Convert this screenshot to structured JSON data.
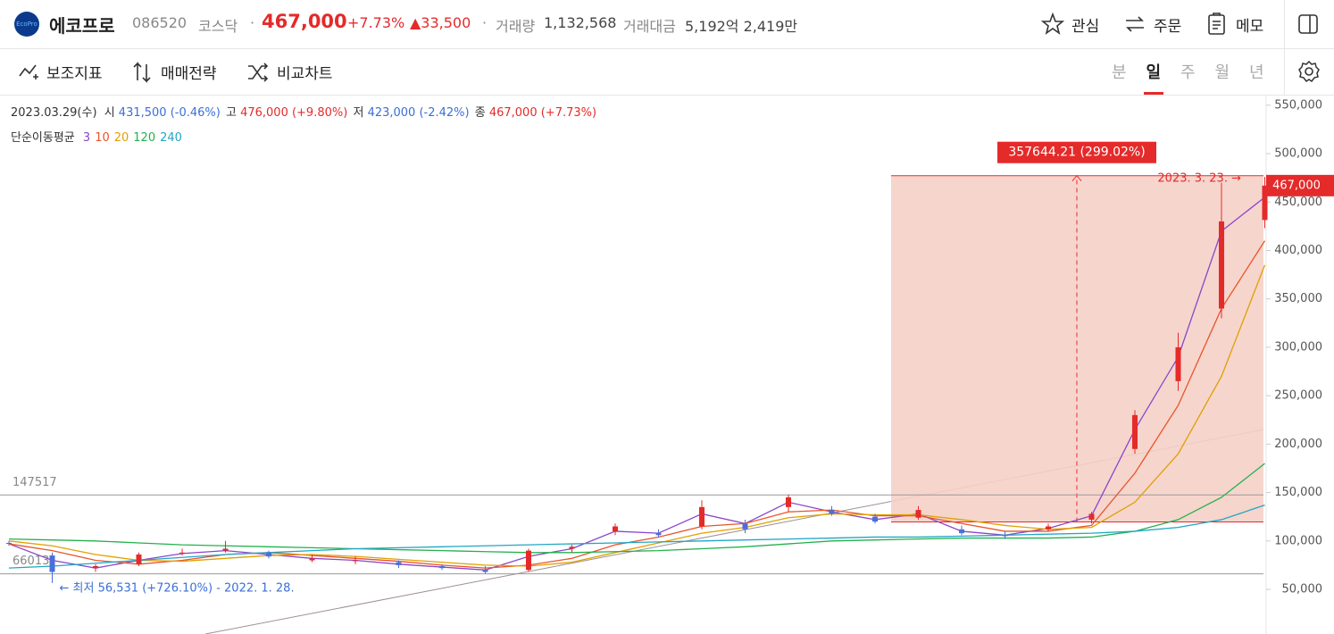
{
  "header": {
    "logo": "EcoPro",
    "name": "에코프로",
    "code": "086520",
    "market": "코스닥",
    "dot": "·",
    "price": "467,000",
    "change_pct": "+7.73%",
    "change": "▲33,500",
    "volume_label": "거래량",
    "volume": "1,132,568",
    "amount_label": "거래대금",
    "amount": "5,192억 2,419만",
    "actions": [
      "관심",
      "주문",
      "메모"
    ]
  },
  "toolbar": {
    "tools": [
      "보조지표",
      "매매전략",
      "비교차트"
    ],
    "periods": [
      "분",
      "일",
      "주",
      "월",
      "년"
    ],
    "selected_period": "일"
  },
  "chart_data": {
    "type": "candlestick",
    "ohlc_line": {
      "date": "2023.03.29(수)",
      "open_label": "시",
      "open": "431,500 (-0.46%)",
      "high_label": "고",
      "high": "476,000 (+9.80%)",
      "low_label": "저",
      "low": "423,000 (-2.42%)",
      "close_label": "종",
      "close": "467,000 (+7.73%)"
    },
    "indicator_label": "단순이동평균",
    "up_color": "#e52a2a",
    "down_color": "#4a6fd8",
    "open": [
      98000,
      85000,
      72000,
      76000,
      88000,
      90000,
      88000,
      80000,
      80000,
      78000,
      74000,
      70000,
      70000,
      92000,
      110000,
      108000,
      115000,
      118000,
      135000,
      132000,
      125000,
      124000,
      112000,
      106000,
      112000,
      122000,
      195000,
      265000,
      340000,
      431500
    ],
    "high": [
      100000,
      88000,
      76000,
      88000,
      92000,
      100000,
      90000,
      86000,
      84000,
      80000,
      76000,
      74000,
      92000,
      96000,
      118000,
      112000,
      142000,
      122000,
      148000,
      136000,
      128000,
      136000,
      116000,
      110000,
      118000,
      130000,
      235000,
      315000,
      470000,
      476000
    ],
    "low": [
      95000,
      56531,
      68000,
      74000,
      85000,
      88000,
      82000,
      78000,
      76000,
      72000,
      70000,
      66000,
      68000,
      88000,
      106000,
      104000,
      112000,
      108000,
      130000,
      126000,
      118000,
      122000,
      106000,
      102000,
      110000,
      118000,
      190000,
      255000,
      330000,
      423000
    ],
    "close": [
      97000,
      68000,
      74000,
      86000,
      88000,
      92000,
      84000,
      82000,
      80000,
      75000,
      72000,
      68000,
      90000,
      94000,
      115000,
      106000,
      135000,
      112000,
      145000,
      128000,
      120000,
      132000,
      108000,
      105000,
      115000,
      128000,
      230000,
      300000,
      430000,
      467000
    ],
    "series": [
      {
        "name": "3",
        "color": "#8b46c9",
        "values": [
          97000,
          80000,
          72000,
          80000,
          87000,
          90000,
          86000,
          82000,
          80000,
          76000,
          73000,
          70000,
          84000,
          92000,
          110000,
          108000,
          128000,
          118000,
          140000,
          130000,
          122000,
          128000,
          110000,
          106000,
          113000,
          126000,
          215000,
          290000,
          420000,
          455000
        ]
      },
      {
        "name": "10",
        "color": "#e8542b",
        "values": [
          97000,
          90000,
          80000,
          76000,
          80000,
          86000,
          88000,
          85000,
          82000,
          79000,
          75000,
          72000,
          75000,
          82000,
          96000,
          104000,
          115000,
          118000,
          130000,
          132000,
          126000,
          126000,
          118000,
          110000,
          110000,
          116000,
          170000,
          240000,
          340000,
          410000
        ]
      },
      {
        "name": "20",
        "color": "#e0a000",
        "values": [
          100000,
          95000,
          86000,
          80000,
          79000,
          82000,
          85000,
          86000,
          84000,
          81000,
          78000,
          75000,
          74000,
          78000,
          88000,
          98000,
          108000,
          114000,
          124000,
          128000,
          127000,
          127000,
          122000,
          116000,
          112000,
          114000,
          140000,
          190000,
          270000,
          385000
        ]
      },
      {
        "name": "120",
        "color": "#23b14d",
        "values": [
          102000,
          101000,
          100000,
          98000,
          96000,
          95000,
          94000,
          93000,
          92000,
          91000,
          90000,
          89000,
          88000,
          88000,
          89000,
          90000,
          92000,
          94000,
          97000,
          100000,
          101000,
          102000,
          103000,
          103000,
          103000,
          104000,
          110000,
          122000,
          145000,
          180000
        ]
      },
      {
        "name": "240",
        "color": "#22a6c4",
        "values": [
          72000,
          74000,
          77000,
          80000,
          83000,
          86000,
          88000,
          90000,
          92000,
          93000,
          94000,
          95000,
          96000,
          97000,
          98000,
          99000,
          100000,
          101000,
          102000,
          103000,
          104000,
          104000,
          105000,
          106000,
          107000,
          108000,
          110000,
          114000,
          122000,
          137000
        ]
      }
    ],
    "ylim": [
      3900,
      560000
    ],
    "yticks": [
      {
        "value": 550000,
        "label": "550,000"
      },
      {
        "value": 500000,
        "label": "500,000"
      },
      {
        "value": 450000,
        "label": "450,000"
      },
      {
        "value": 400000,
        "label": "400,000"
      },
      {
        "value": 350000,
        "label": "350,000"
      },
      {
        "value": 300000,
        "label": "300,000"
      },
      {
        "value": 250000,
        "label": "250,000"
      },
      {
        "value": 200000,
        "label": "200,000"
      },
      {
        "value": 150000,
        "label": "150,000"
      },
      {
        "value": 100000,
        "label": "100,000"
      },
      {
        "value": 50000,
        "label": "50,000"
      }
    ],
    "levels": [
      147517,
      66013
    ],
    "current_price": {
      "value": 467000,
      "label": "467,000"
    },
    "range_box": {
      "low": 119605,
      "high": 477249,
      "label": "357644.21 (299.02%)"
    },
    "high_note": "2023. 3. 23. →",
    "low_note": "← 최저 56,531 (+726.10%) - 2022. 1. 28."
  }
}
